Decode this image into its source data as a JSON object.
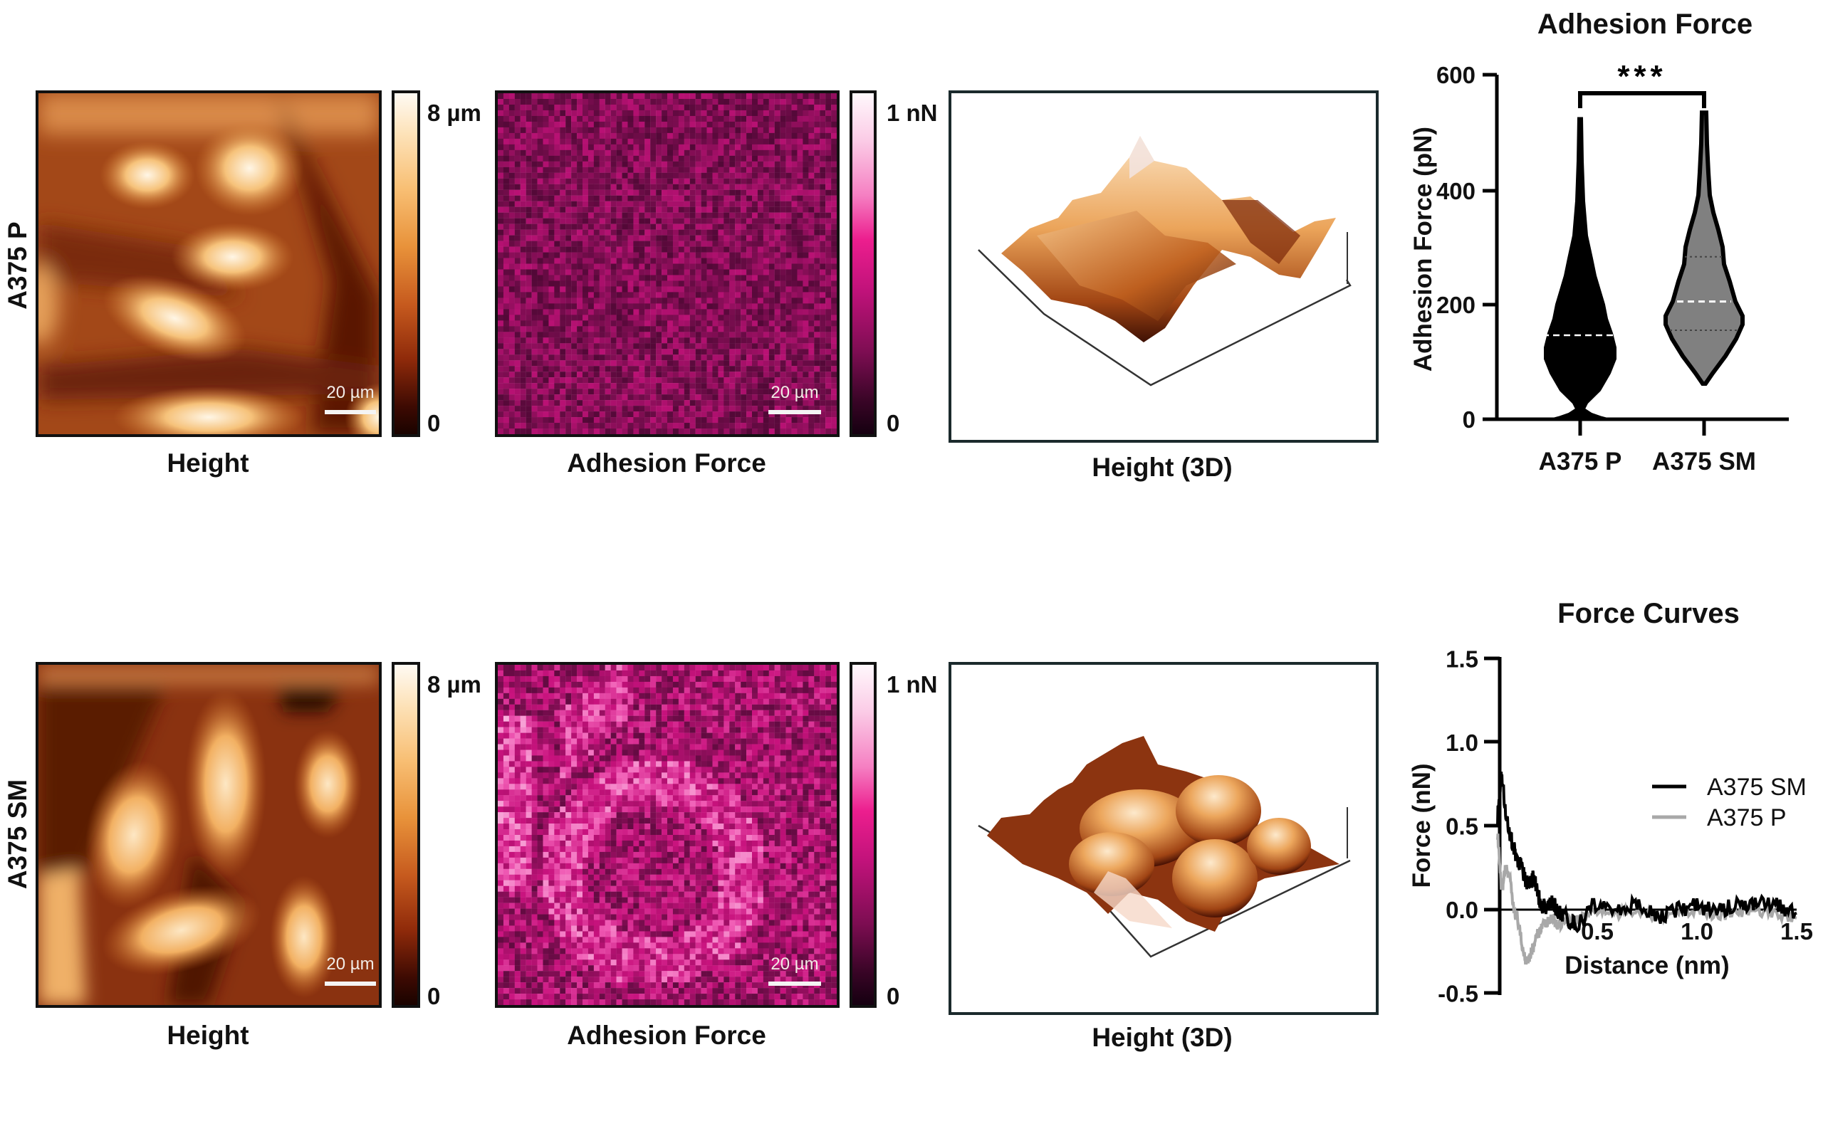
{
  "figure": {
    "rows": [
      {
        "label": "A375 P",
        "height_map": {
          "label": "Height",
          "scale_bar": "20 µm",
          "colorbar_max": "8 µm",
          "colorbar_min": "0"
        },
        "adhesion_map": {
          "label": "Adhesion Force",
          "scale_bar": "20 µm",
          "colorbar_max": "1 nN",
          "colorbar_min": "0"
        },
        "height_3d": {
          "label": "Height (3D)"
        }
      },
      {
        "label": "A375 SM",
        "height_map": {
          "label": "Height",
          "scale_bar": "20 µm",
          "colorbar_max": "8 µm",
          "colorbar_min": "0"
        },
        "adhesion_map": {
          "label": "Adhesion Force",
          "scale_bar": "20 µm",
          "colorbar_max": "1 nN",
          "colorbar_min": "0"
        },
        "height_3d": {
          "label": "Height (3D)"
        }
      }
    ],
    "colors": {
      "height_colormap": [
        "#1a0300",
        "#8f2a0a",
        "#e8923a",
        "#fde2b8",
        "#fffaf3"
      ],
      "adhesion_colormap": [
        "#150010",
        "#7d0d52",
        "#ec1e8e",
        "#fbcbe6",
        "#fff8fc"
      ],
      "violin_p_fill": "#000000",
      "violin_sm_fill": "#808080",
      "curve_sm": "#000000",
      "curve_p": "#a8a8a8"
    }
  },
  "chart_data": [
    {
      "type": "violin",
      "title": "Adhesion Force",
      "xlabel": "",
      "ylabel": "Adhesion Force (pN)",
      "ylim": [
        0,
        600
      ],
      "yticks": [
        0,
        200,
        400,
        600
      ],
      "categories": [
        "A375 P",
        "A375 SM"
      ],
      "series": [
        {
          "name": "A375 P",
          "min": 0,
          "max": 525,
          "median": 146,
          "widest_at": 120,
          "fill": "#000000"
        },
        {
          "name": "A375 SM",
          "min": 62,
          "max": 534,
          "q1": 155,
          "median": 205,
          "q3": 283,
          "widest_at": 175,
          "fill": "#808080"
        }
      ],
      "annotations": [
        {
          "type": "significance_bracket",
          "between": [
            "A375 P",
            "A375 SM"
          ],
          "text": "***"
        }
      ],
      "grid": false
    },
    {
      "type": "line",
      "title": "Force Curves",
      "xlabel": "Distance (nm)",
      "ylabel": "Force (nN)",
      "xlim": [
        0,
        1.5
      ],
      "ylim": [
        -0.5,
        1.5
      ],
      "xticks": [
        0.5,
        1.0,
        1.5
      ],
      "yticks": [
        -0.5,
        0.0,
        0.5,
        1.0,
        1.5
      ],
      "legend": {
        "position": "upper right",
        "entries": [
          "A375 SM",
          "A375 P"
        ]
      },
      "series": [
        {
          "name": "A375 SM",
          "color": "#000000",
          "x": [
            0.0,
            0.02,
            0.04,
            0.06,
            0.08,
            0.1,
            0.12,
            0.14,
            0.16,
            0.18,
            0.2,
            0.22,
            0.25,
            0.28,
            0.3,
            0.35,
            0.4,
            0.5,
            0.6,
            0.7,
            0.8,
            0.9,
            1.0,
            1.1,
            1.2,
            1.3,
            1.4,
            1.5
          ],
          "y": [
            0.55,
            0.8,
            0.6,
            0.45,
            0.38,
            0.3,
            0.25,
            0.18,
            0.15,
            0.2,
            0.1,
            0.03,
            0.0,
            0.05,
            -0.02,
            -0.05,
            -0.1,
            0.05,
            0.0,
            0.04,
            -0.05,
            0.0,
            0.02,
            0.0,
            0.03,
            0.05,
            0.02,
            -0.02
          ]
        },
        {
          "name": "A375 P",
          "color": "#a8a8a8",
          "x": [
            0.0,
            0.02,
            0.04,
            0.06,
            0.08,
            0.1,
            0.12,
            0.14,
            0.16,
            0.18,
            0.2,
            0.22,
            0.25,
            0.28,
            0.3,
            0.35,
            0.4,
            0.5,
            0.6,
            0.7,
            0.8,
            0.9,
            1.0,
            1.1,
            1.2,
            1.3,
            1.4,
            1.5
          ],
          "y": [
            0.45,
            0.1,
            0.25,
            0.2,
            0.0,
            -0.05,
            -0.2,
            -0.3,
            -0.28,
            -0.22,
            -0.15,
            -0.1,
            -0.08,
            -0.05,
            -0.1,
            -0.04,
            -0.06,
            0.0,
            -0.03,
            0.0,
            -0.04,
            -0.02,
            0.0,
            -0.03,
            -0.02,
            0.0,
            -0.03,
            -0.05
          ]
        }
      ],
      "grid": false
    }
  ]
}
